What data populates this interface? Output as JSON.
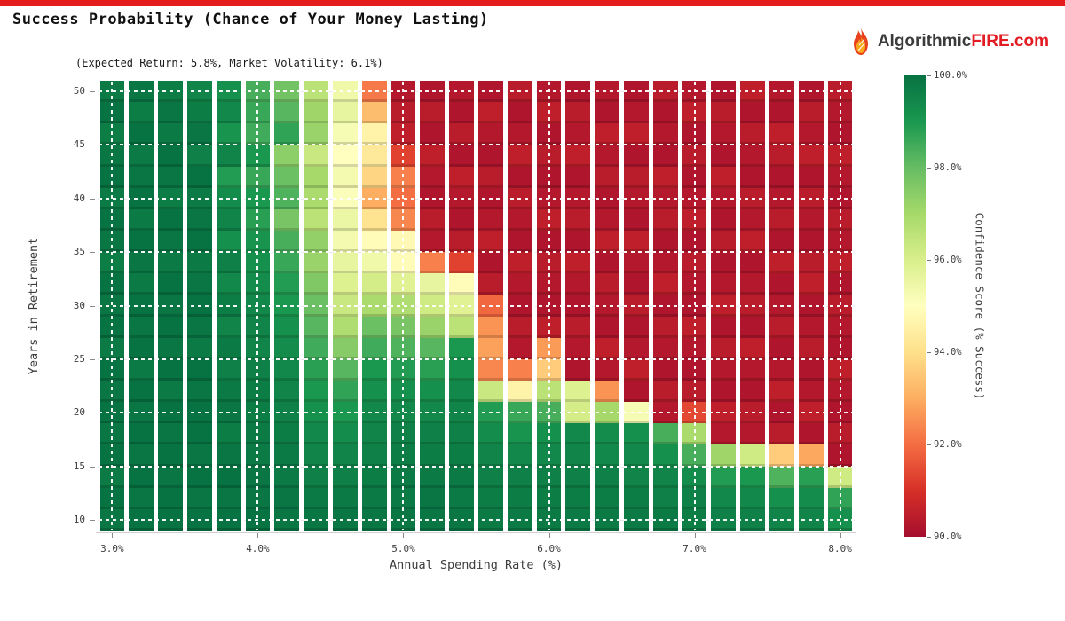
{
  "page": {
    "topbar_color": "#e41c1c"
  },
  "header": {
    "title": "Success Probability (Chance of Your Money Lasting)",
    "subtitle": "(Expected Return: 5.8%, Market Volatility: 6.1%)"
  },
  "logo": {
    "flame_icon": "flame-icon",
    "text_dark": "Algorithmic",
    "text_red": "FIRE.com"
  },
  "chart_data": {
    "type": "heatmap",
    "title": "Success Probability (Chance of Your Money Lasting)",
    "subtitle": "(Expected Return: 5.8%, Market Volatility: 6.1%)",
    "xlabel": "Annual Spending Rate (%)",
    "ylabel": "Years in Retirement",
    "x_range": [
      2.9,
      8.1
    ],
    "y_range": [
      9,
      51
    ],
    "x_major_ticks": [
      3.0,
      4.0,
      5.0,
      6.0,
      7.0,
      8.0
    ],
    "x_tick_labels": [
      "3.0%",
      "4.0%",
      "5.0%",
      "6.0%",
      "7.0%",
      "8.0%"
    ],
    "y_major_ticks": [
      10,
      15,
      20,
      25,
      30,
      35,
      40,
      45,
      50
    ],
    "y_tick_labels": [
      "10",
      "15",
      "20",
      "25",
      "30",
      "35",
      "40",
      "45",
      "50"
    ],
    "grid_dash_color": "#ffffff",
    "y_years_top_to_bottom": [
      50,
      48,
      46,
      44,
      42,
      40,
      38,
      36,
      34,
      32,
      30,
      28,
      26,
      24,
      22,
      20,
      18,
      16,
      14,
      12,
      10
    ],
    "columns": [
      {
        "rate": "3.0%",
        "values": [
          99.8,
          100,
          99.7,
          99.9,
          100,
          99.8,
          100,
          99.9,
          99.7,
          100,
          99.9,
          100,
          99.8,
          100,
          99.9,
          100,
          99.9,
          100,
          99.8,
          100,
          99.9
        ]
      },
      {
        "rate": "3.2%",
        "values": [
          99.9,
          99.7,
          100,
          99.8,
          99.9,
          100,
          99.8,
          100,
          99.9,
          99.8,
          100,
          99.9,
          100,
          99.8,
          100,
          99.9,
          100,
          99.9,
          100,
          99.9,
          100
        ]
      },
      {
        "rate": "3.4%",
        "values": [
          99.7,
          99.9,
          99.8,
          100,
          99.9,
          99.7,
          100,
          99.9,
          99.8,
          100,
          99.9,
          100,
          99.9,
          100,
          99.8,
          100,
          99.9,
          100,
          99.9,
          100,
          100
        ]
      },
      {
        "rate": "3.6%",
        "values": [
          99.5,
          99.7,
          99.9,
          99.6,
          100,
          99.8,
          99.9,
          100,
          99.8,
          99.9,
          100,
          99.9,
          99.8,
          100,
          99.9,
          100,
          100,
          99.9,
          100,
          99.9,
          100
        ]
      },
      {
        "rate": "3.8%",
        "values": [
          99.2,
          99.4,
          99.1,
          99.5,
          98.9,
          99.3,
          99.5,
          99.2,
          99.6,
          99.4,
          99.7,
          99.5,
          99.8,
          99.6,
          99.8,
          99.9,
          99.7,
          99.9,
          100,
          99.9,
          100
        ]
      },
      {
        "rate": "4.0%",
        "values": [
          98.4,
          98.6,
          98.5,
          99.0,
          98.6,
          99.0,
          98.8,
          99.1,
          99.2,
          99.3,
          99.4,
          99.5,
          99.5,
          99.6,
          99.7,
          99.7,
          99.8,
          99.8,
          99.9,
          99.9,
          100
        ]
      },
      {
        "rate": "4.2%",
        "values": [
          97.8,
          98.2,
          98.7,
          97.4,
          97.9,
          98.3,
          97.7,
          98.4,
          98.6,
          98.9,
          99.0,
          99.2,
          99.3,
          99.4,
          99.5,
          99.6,
          99.7,
          99.8,
          99.8,
          99.9,
          99.9
        ]
      },
      {
        "rate": "4.4%",
        "values": [
          96.6,
          97.1,
          97.2,
          96.3,
          97.0,
          96.9,
          96.6,
          97.3,
          97.2,
          97.6,
          97.9,
          98.2,
          98.5,
          98.8,
          99.0,
          99.2,
          99.4,
          99.5,
          99.6,
          99.8,
          99.9
        ]
      },
      {
        "rate": "4.6%",
        "values": [
          95.4,
          95.6,
          95.2,
          95.0,
          95.3,
          95.1,
          95.5,
          95.3,
          95.6,
          95.9,
          96.3,
          96.8,
          97.5,
          98.2,
          98.7,
          99.0,
          99.3,
          99.5,
          99.6,
          99.8,
          99.9
        ]
      },
      {
        "rate": "4.8%",
        "values": [
          92.2,
          93.3,
          94.6,
          94.3,
          93.8,
          93.0,
          94.1,
          94.9,
          95.4,
          96.1,
          96.9,
          97.9,
          98.5,
          99.0,
          99.2,
          99.4,
          99.5,
          99.6,
          99.7,
          99.8,
          99.9
        ]
      },
      {
        "rate": "5.0%",
        "values": [
          90.3,
          90.4,
          90.5,
          91.3,
          92.3,
          92.0,
          92.4,
          94.8,
          94.9,
          95.8,
          96.8,
          97.7,
          98.3,
          98.9,
          99.2,
          99.4,
          99.6,
          99.7,
          99.8,
          99.8,
          99.9
        ]
      },
      {
        "rate": "5.2%",
        "values": [
          90.2,
          90.4,
          90.2,
          90.5,
          90.3,
          90.2,
          90.4,
          90.3,
          92.3,
          95.6,
          96.2,
          97.2,
          98.2,
          98.8,
          99.2,
          99.4,
          99.6,
          99.7,
          99.8,
          99.9,
          99.9
        ]
      },
      {
        "rate": "5.4%",
        "values": [
          90.3,
          90.2,
          90.4,
          90.2,
          90.5,
          90.3,
          90.2,
          90.4,
          91.3,
          94.9,
          95.8,
          96.6,
          99.0,
          99.2,
          99.4,
          99.5,
          99.6,
          99.7,
          99.8,
          99.8,
          99.9
        ]
      },
      {
        "rate": "5.6%",
        "values": [
          90.2,
          90.5,
          90.3,
          90.2,
          90.4,
          90.2,
          90.3,
          90.5,
          90.2,
          90.4,
          91.9,
          92.6,
          92.8,
          92.4,
          96.3,
          98.9,
          99.3,
          99.5,
          99.6,
          99.7,
          99.8
        ]
      },
      {
        "rate": "5.8%",
        "values": [
          90.4,
          90.2,
          90.3,
          90.5,
          90.2,
          90.4,
          90.3,
          90.2,
          90.5,
          90.3,
          90.2,
          90.4,
          90.3,
          92.3,
          94.6,
          98.6,
          99.1,
          99.4,
          99.6,
          99.7,
          99.8
        ]
      },
      {
        "rate": "6.0%",
        "values": [
          90.3,
          90.5,
          90.2,
          90.4,
          90.2,
          90.3,
          90.5,
          90.2,
          90.4,
          90.3,
          90.2,
          90.5,
          92.7,
          93.6,
          96.6,
          98.4,
          99.2,
          99.4,
          99.6,
          99.7,
          99.8
        ]
      },
      {
        "rate": "6.2%",
        "values": [
          90.2,
          90.4,
          90.3,
          90.5,
          90.2,
          90.3,
          90.4,
          90.2,
          90.5,
          90.3,
          90.2,
          90.4,
          90.3,
          90.2,
          95.9,
          96.1,
          99.4,
          99.5,
          99.6,
          99.7,
          99.8
        ]
      },
      {
        "rate": "6.4%",
        "values": [
          90.3,
          90.2,
          90.5,
          90.3,
          90.4,
          90.2,
          90.3,
          90.5,
          90.2,
          90.4,
          90.3,
          90.2,
          90.5,
          90.3,
          92.6,
          97.0,
          99.3,
          99.4,
          99.6,
          99.7,
          99.8
        ]
      },
      {
        "rate": "6.6%",
        "values": [
          90.2,
          90.3,
          90.5,
          90.2,
          90.4,
          90.3,
          90.2,
          90.5,
          90.3,
          90.2,
          90.4,
          90.2,
          90.3,
          90.5,
          90.2,
          95.2,
          99.2,
          99.4,
          99.5,
          99.7,
          99.8
        ]
      },
      {
        "rate": "6.8%",
        "values": [
          90.4,
          90.2,
          90.3,
          90.2,
          90.5,
          90.3,
          90.4,
          90.2,
          90.3,
          90.5,
          90.2,
          90.4,
          90.3,
          90.2,
          90.4,
          90.3,
          98.4,
          99.2,
          99.5,
          99.6,
          99.8
        ]
      },
      {
        "rate": "7.0%",
        "values": [
          90.3,
          90.5,
          90.2,
          90.4,
          90.2,
          90.3,
          90.5,
          90.2,
          90.4,
          90.3,
          90.2,
          90.5,
          90.3,
          90.2,
          90.4,
          91.4,
          96.9,
          98.4,
          99.3,
          99.6,
          99.7
        ]
      },
      {
        "rate": "7.2%",
        "values": [
          90.2,
          90.4,
          90.3,
          90.2,
          90.5,
          90.3,
          90.2,
          90.4,
          90.2,
          90.3,
          90.5,
          90.2,
          90.4,
          90.3,
          90.2,
          90.5,
          90.3,
          97.1,
          98.9,
          99.4,
          99.6
        ]
      },
      {
        "rate": "7.4%",
        "values": [
          90.5,
          90.2,
          90.4,
          90.3,
          90.2,
          90.4,
          90.3,
          90.5,
          90.2,
          90.3,
          90.4,
          90.2,
          90.5,
          90.3,
          90.2,
          90.4,
          90.3,
          96.2,
          99.0,
          99.4,
          99.6
        ]
      },
      {
        "rate": "7.6%",
        "values": [
          90.3,
          90.2,
          90.5,
          90.4,
          90.2,
          90.3,
          90.4,
          90.2,
          90.5,
          90.2,
          90.3,
          90.4,
          90.2,
          90.3,
          90.5,
          90.2,
          90.4,
          93.6,
          98.3,
          99.2,
          99.5
        ]
      },
      {
        "rate": "7.8%",
        "values": [
          90.2,
          90.4,
          90.3,
          90.5,
          90.2,
          90.4,
          90.3,
          90.2,
          90.4,
          90.5,
          90.2,
          90.3,
          90.4,
          90.2,
          90.3,
          90.5,
          90.2,
          92.9,
          98.8,
          99.3,
          99.5
        ]
      },
      {
        "rate": "8.0%",
        "values": [
          90.4,
          90.3,
          90.2,
          90.5,
          90.3,
          90.2,
          90.4,
          90.3,
          90.5,
          90.2,
          90.4,
          90.3,
          90.2,
          90.5,
          90.3,
          90.2,
          90.4,
          90.2,
          96.2,
          98.7,
          99.2
        ]
      }
    ],
    "colorbar": {
      "label": "Confidence Score (% Success)",
      "min": 90,
      "max": 100,
      "tick_labels": [
        "100.0%",
        "98.0%",
        "96.0%",
        "94.0%",
        "92.0%",
        "90.0%"
      ],
      "palette": [
        "#a50e2e",
        "#d73027",
        "#f46d43",
        "#fdae61",
        "#fee08b",
        "#ffffbf",
        "#d9ef8b",
        "#a6d96a",
        "#66bd63",
        "#1a9850",
        "#077242"
      ]
    },
    "legend_position": "right",
    "grid": true
  }
}
